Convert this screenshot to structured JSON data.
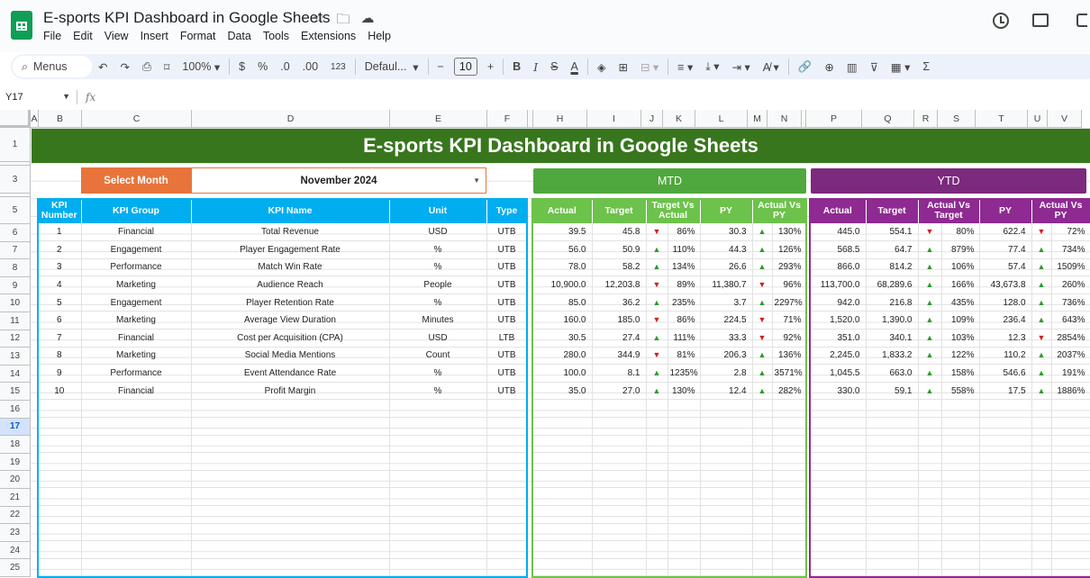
{
  "app": {
    "title": "E-sports KPI Dashboard in Google Sheets",
    "menu": [
      "File",
      "Edit",
      "View",
      "Insert",
      "Format",
      "Data",
      "Tools",
      "Extensions",
      "Help"
    ]
  },
  "toolbar": {
    "search_label": "Menus",
    "zoom": "100%",
    "currency": "$",
    "percent": "%",
    "dec_decrease": ".0",
    "dec_increase": ".00",
    "number_format": "123",
    "font": "Defaul...",
    "font_size": "10",
    "bold": "B",
    "italic": "I",
    "strike": "S",
    "text_color": "A"
  },
  "formula_bar": {
    "cell_ref": "Y17",
    "fx": "fx"
  },
  "columns": [
    "A",
    "B",
    "C",
    "D",
    "E",
    "F",
    "H",
    "I",
    "J",
    "K",
    "L",
    "M",
    "N",
    "P",
    "Q",
    "R",
    "S",
    "T",
    "U",
    "V"
  ],
  "rows": [
    "1",
    "2",
    "3",
    "4",
    "5",
    "6",
    "7",
    "8",
    "9",
    "10",
    "11",
    "12",
    "13",
    "14",
    "15",
    "16",
    "17",
    "18",
    "19",
    "20",
    "21",
    "22",
    "23",
    "24",
    "25"
  ],
  "selected_row": "17",
  "dashboard": {
    "banner": "E-sports KPI Dashboard in Google Sheets",
    "select_month_label": "Select Month",
    "select_month_value": "November 2024",
    "mtd_label": "MTD",
    "ytd_label": "YTD",
    "kpi_headers": [
      "KPI Number",
      "KPI Group",
      "KPI Name",
      "Unit",
      "Type"
    ],
    "mtd_headers": [
      "Actual",
      "Target",
      "Target Vs Actual",
      "PY",
      "Actual Vs PY"
    ],
    "ytd_headers": [
      "Actual",
      "Target",
      "Actual Vs Target",
      "PY",
      "Actual Vs PY"
    ],
    "colors": {
      "banner": "#38761d",
      "kpi": "#00aeef",
      "mtd": "#6cc24a",
      "ytd": "#8e2a91",
      "month_label": "#e8743b",
      "up": "#2e9a2e",
      "down": "#d21f1f"
    },
    "kpis": [
      {
        "num": "1",
        "group": "Financial",
        "name": "Total Revenue",
        "unit": "USD",
        "type": "UTB",
        "mtd": {
          "actual": "39.5",
          "target": "45.8",
          "tva_dir": "down",
          "tva": "86%",
          "py": "30.3",
          "avp_dir": "up",
          "avp": "130%"
        },
        "ytd": {
          "actual": "445.0",
          "target": "554.1",
          "avt_dir": "down",
          "avt": "80%",
          "py": "622.4",
          "avp_dir": "down",
          "avp": "72%"
        }
      },
      {
        "num": "2",
        "group": "Engagement",
        "name": "Player Engagement Rate",
        "unit": "%",
        "type": "UTB",
        "mtd": {
          "actual": "56.0",
          "target": "50.9",
          "tva_dir": "up",
          "tva": "110%",
          "py": "44.3",
          "avp_dir": "up",
          "avp": "126%"
        },
        "ytd": {
          "actual": "568.5",
          "target": "64.7",
          "avt_dir": "up",
          "avt": "879%",
          "py": "77.4",
          "avp_dir": "up",
          "avp": "734%"
        }
      },
      {
        "num": "3",
        "group": "Performance",
        "name": "Match Win Rate",
        "unit": "%",
        "type": "UTB",
        "mtd": {
          "actual": "78.0",
          "target": "58.2",
          "tva_dir": "up",
          "tva": "134%",
          "py": "26.6",
          "avp_dir": "up",
          "avp": "293%"
        },
        "ytd": {
          "actual": "866.0",
          "target": "814.2",
          "avt_dir": "up",
          "avt": "106%",
          "py": "57.4",
          "avp_dir": "up",
          "avp": "1509%"
        }
      },
      {
        "num": "4",
        "group": "Marketing",
        "name": "Audience Reach",
        "unit": "People",
        "type": "UTB",
        "mtd": {
          "actual": "10,900.0",
          "target": "12,203.8",
          "tva_dir": "down",
          "tva": "89%",
          "py": "11,380.7",
          "avp_dir": "down",
          "avp": "96%"
        },
        "ytd": {
          "actual": "113,700.0",
          "target": "68,289.6",
          "avt_dir": "up",
          "avt": "166%",
          "py": "43,673.8",
          "avp_dir": "up",
          "avp": "260%"
        }
      },
      {
        "num": "5",
        "group": "Engagement",
        "name": "Player Retention Rate",
        "unit": "%",
        "type": "UTB",
        "mtd": {
          "actual": "85.0",
          "target": "36.2",
          "tva_dir": "up",
          "tva": "235%",
          "py": "3.7",
          "avp_dir": "up",
          "avp": "2297%"
        },
        "ytd": {
          "actual": "942.0",
          "target": "216.8",
          "avt_dir": "up",
          "avt": "435%",
          "py": "128.0",
          "avp_dir": "up",
          "avp": "736%"
        }
      },
      {
        "num": "6",
        "group": "Marketing",
        "name": "Average View Duration",
        "unit": "Minutes",
        "type": "UTB",
        "mtd": {
          "actual": "160.0",
          "target": "185.0",
          "tva_dir": "down",
          "tva": "86%",
          "py": "224.5",
          "avp_dir": "down",
          "avp": "71%"
        },
        "ytd": {
          "actual": "1,520.0",
          "target": "1,390.0",
          "avt_dir": "up",
          "avt": "109%",
          "py": "236.4",
          "avp_dir": "up",
          "avp": "643%"
        }
      },
      {
        "num": "7",
        "group": "Financial",
        "name": "Cost per Acquisition (CPA)",
        "unit": "USD",
        "type": "LTB",
        "mtd": {
          "actual": "30.5",
          "target": "27.4",
          "tva_dir": "up",
          "tva": "111%",
          "py": "33.3",
          "avp_dir": "down",
          "avp": "92%"
        },
        "ytd": {
          "actual": "351.0",
          "target": "340.1",
          "avt_dir": "up",
          "avt": "103%",
          "py": "12.3",
          "avp_dir": "down",
          "avp": "2854%"
        }
      },
      {
        "num": "8",
        "group": "Marketing",
        "name": "Social Media Mentions",
        "unit": "Count",
        "type": "UTB",
        "mtd": {
          "actual": "280.0",
          "target": "344.9",
          "tva_dir": "down",
          "tva": "81%",
          "py": "206.3",
          "avp_dir": "up",
          "avp": "136%"
        },
        "ytd": {
          "actual": "2,245.0",
          "target": "1,833.2",
          "avt_dir": "up",
          "avt": "122%",
          "py": "110.2",
          "avp_dir": "up",
          "avp": "2037%"
        }
      },
      {
        "num": "9",
        "group": "Performance",
        "name": "Event Attendance Rate",
        "unit": "%",
        "type": "UTB",
        "mtd": {
          "actual": "100.0",
          "target": "8.1",
          "tva_dir": "up",
          "tva": "1235%",
          "py": "2.8",
          "avp_dir": "up",
          "avp": "3571%"
        },
        "ytd": {
          "actual": "1,045.5",
          "target": "663.0",
          "avt_dir": "up",
          "avt": "158%",
          "py": "546.6",
          "avp_dir": "up",
          "avp": "191%"
        }
      },
      {
        "num": "10",
        "group": "Financial",
        "name": "Profit Margin",
        "unit": "%",
        "type": "UTB",
        "mtd": {
          "actual": "35.0",
          "target": "27.0",
          "tva_dir": "up",
          "tva": "130%",
          "py": "12.4",
          "avp_dir": "up",
          "avp": "282%"
        },
        "ytd": {
          "actual": "330.0",
          "target": "59.1",
          "avt_dir": "up",
          "avt": "558%",
          "py": "17.5",
          "avp_dir": "up",
          "avp": "1886%"
        }
      }
    ]
  }
}
